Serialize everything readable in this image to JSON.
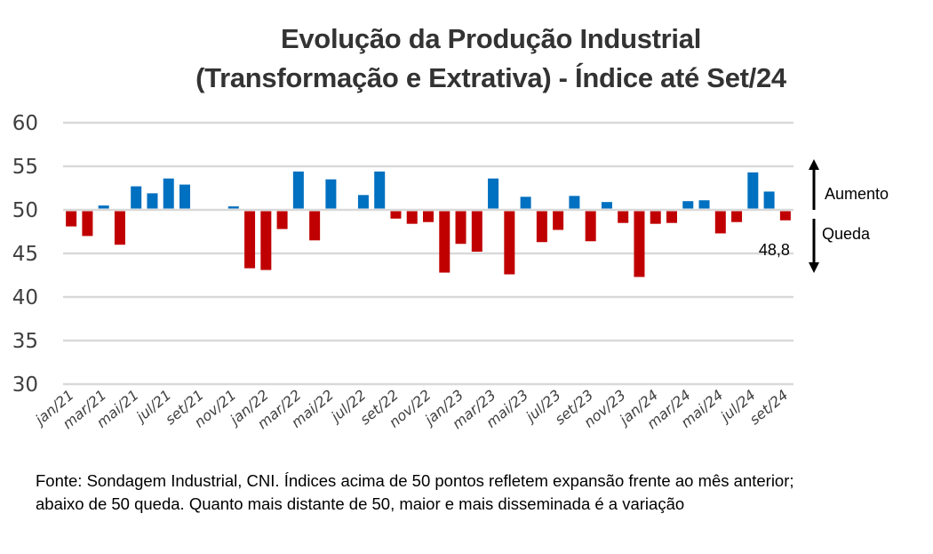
{
  "chart_data": {
    "type": "bar",
    "title": "Evolução da Produção Industrial (Transformação e Extrativa) - Índice até Set/24",
    "title_lines": [
      "Evolução da Produção Industrial",
      "(Transformação e Extrativa) - Índice até Set/24"
    ],
    "xlabel": "",
    "ylabel": "",
    "ylim": [
      30,
      60
    ],
    "yticks": [
      60,
      55,
      50,
      45,
      40,
      35,
      30
    ],
    "baseline": 50,
    "grid": true,
    "categories": [
      "jan/21",
      "fev/21",
      "mar/21",
      "abr/21",
      "mai/21",
      "jun/21",
      "jul/21",
      "ago/21",
      "set/21",
      "out/21",
      "nov/21",
      "dez/21",
      "jan/22",
      "fev/22",
      "mar/22",
      "abr/22",
      "mai/22",
      "jun/22",
      "jul/22",
      "ago/22",
      "set/22",
      "out/22",
      "nov/22",
      "dez/22",
      "jan/23",
      "fev/23",
      "mar/23",
      "abr/23",
      "mai/23",
      "jun/23",
      "jul/23",
      "ago/23",
      "set/23",
      "out/23",
      "nov/23",
      "dez/23",
      "jan/24",
      "fev/24",
      "mar/24",
      "abr/24",
      "mai/24",
      "jun/24",
      "jul/24",
      "ago/24",
      "set/24"
    ],
    "tick_labels": [
      "jan/21",
      "mar/21",
      "mai/21",
      "jul/21",
      "set/21",
      "nov/21",
      "jan/22",
      "mar/22",
      "mai/22",
      "jul/22",
      "set/22",
      "nov/22",
      "jan/23",
      "mar/23",
      "mai/23",
      "jul/23",
      "set/23",
      "nov/23",
      "jan/24",
      "mar/24",
      "mai/24",
      "jul/24",
      "set/24"
    ],
    "values": [
      48.1,
      47.0,
      50.5,
      46.0,
      52.7,
      51.9,
      53.6,
      52.9,
      50.0,
      50.0,
      50.4,
      43.3,
      43.1,
      47.8,
      54.4,
      46.5,
      53.5,
      50.0,
      51.7,
      54.4,
      49.0,
      48.4,
      48.6,
      42.8,
      46.1,
      45.2,
      53.6,
      42.6,
      51.5,
      46.3,
      47.7,
      51.6,
      46.4,
      50.9,
      48.5,
      42.3,
      48.4,
      48.5,
      51.0,
      51.1,
      47.3,
      48.6,
      54.3,
      52.1,
      48.8
    ],
    "colors": {
      "above": "#0070C0",
      "below": "#C00000",
      "grid": "#D9D9D9"
    },
    "data_labels": [
      {
        "category": "set/24",
        "text": "48,8"
      }
    ],
    "annotations": {
      "up": "Aumento",
      "down": "Queda"
    },
    "legend": "none"
  },
  "footnote": "Fonte: Sondagem Industrial, CNI. Índices acima de 50 pontos refletem expansão frente ao mês anterior; abaixo de 50 queda. Quanto mais distante de 50, maior e mais disseminada é a variação"
}
